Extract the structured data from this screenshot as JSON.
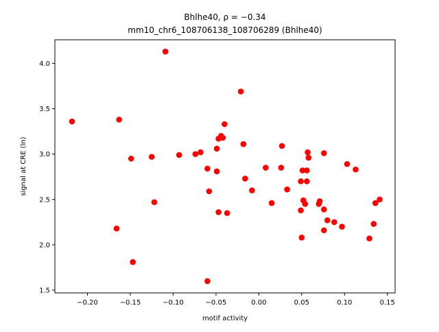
{
  "chart_data": {
    "type": "scatter",
    "title_lines": [
      "Bhlhe40, ρ = −0.34",
      "mm10_chr6_108706138_108706289 (Bhlhe40)"
    ],
    "xlabel": "motif activity",
    "ylabel": "signal at CRE (ln)",
    "xlim": [
      -0.238,
      0.159
    ],
    "ylim": [
      1.47,
      4.26
    ],
    "xticks": [
      -0.2,
      -0.15,
      -0.1,
      -0.05,
      0.0,
      0.05,
      0.1,
      0.15
    ],
    "xtick_labels": [
      "−0.20",
      "−0.15",
      "−0.10",
      "−0.05",
      "0.00",
      "0.05",
      "0.10",
      "0.15"
    ],
    "yticks": [
      1.5,
      2.0,
      2.5,
      3.0,
      3.5,
      4.0
    ],
    "ytick_labels": [
      "1.5",
      "2.0",
      "2.5",
      "3.0",
      "3.5",
      "4.0"
    ],
    "grid": false,
    "marker_color": "#ff0000",
    "points": [
      {
        "x": -0.218,
        "y": 3.36
      },
      {
        "x": -0.166,
        "y": 2.18
      },
      {
        "x": -0.163,
        "y": 3.38
      },
      {
        "x": -0.149,
        "y": 2.95
      },
      {
        "x": -0.147,
        "y": 1.81
      },
      {
        "x": -0.125,
        "y": 2.97
      },
      {
        "x": -0.122,
        "y": 2.47
      },
      {
        "x": -0.109,
        "y": 4.13
      },
      {
        "x": -0.093,
        "y": 2.99
      },
      {
        "x": -0.074,
        "y": 3.0
      },
      {
        "x": -0.068,
        "y": 3.02
      },
      {
        "x": -0.06,
        "y": 2.84
      },
      {
        "x": -0.058,
        "y": 2.59
      },
      {
        "x": -0.06,
        "y": 1.6
      },
      {
        "x": -0.049,
        "y": 2.81
      },
      {
        "x": -0.049,
        "y": 3.06
      },
      {
        "x": -0.047,
        "y": 3.17
      },
      {
        "x": -0.047,
        "y": 2.36
      },
      {
        "x": -0.044,
        "y": 3.2
      },
      {
        "x": -0.042,
        "y": 3.18
      },
      {
        "x": -0.04,
        "y": 3.33
      },
      {
        "x": -0.037,
        "y": 2.35
      },
      {
        "x": -0.021,
        "y": 3.69
      },
      {
        "x": -0.018,
        "y": 3.11
      },
      {
        "x": -0.016,
        "y": 2.73
      },
      {
        "x": -0.008,
        "y": 2.6
      },
      {
        "x": 0.008,
        "y": 2.85
      },
      {
        "x": 0.015,
        "y": 2.46
      },
      {
        "x": 0.026,
        "y": 2.85
      },
      {
        "x": 0.027,
        "y": 3.09
      },
      {
        "x": 0.033,
        "y": 2.61
      },
      {
        "x": 0.049,
        "y": 2.7
      },
      {
        "x": 0.049,
        "y": 2.38
      },
      {
        "x": 0.05,
        "y": 2.08
      },
      {
        "x": 0.051,
        "y": 2.82
      },
      {
        "x": 0.052,
        "y": 2.49
      },
      {
        "x": 0.054,
        "y": 2.45
      },
      {
        "x": 0.056,
        "y": 2.82
      },
      {
        "x": 0.056,
        "y": 2.7
      },
      {
        "x": 0.057,
        "y": 3.02
      },
      {
        "x": 0.058,
        "y": 2.96
      },
      {
        "x": 0.07,
        "y": 2.45
      },
      {
        "x": 0.071,
        "y": 2.48
      },
      {
        "x": 0.076,
        "y": 2.39
      },
      {
        "x": 0.076,
        "y": 2.16
      },
      {
        "x": 0.076,
        "y": 3.01
      },
      {
        "x": 0.08,
        "y": 2.27
      },
      {
        "x": 0.088,
        "y": 2.25
      },
      {
        "x": 0.097,
        "y": 2.2
      },
      {
        "x": 0.103,
        "y": 2.89
      },
      {
        "x": 0.113,
        "y": 2.83
      },
      {
        "x": 0.129,
        "y": 2.07
      },
      {
        "x": 0.134,
        "y": 2.23
      },
      {
        "x": 0.136,
        "y": 2.46
      },
      {
        "x": 0.141,
        "y": 2.5
      }
    ]
  }
}
